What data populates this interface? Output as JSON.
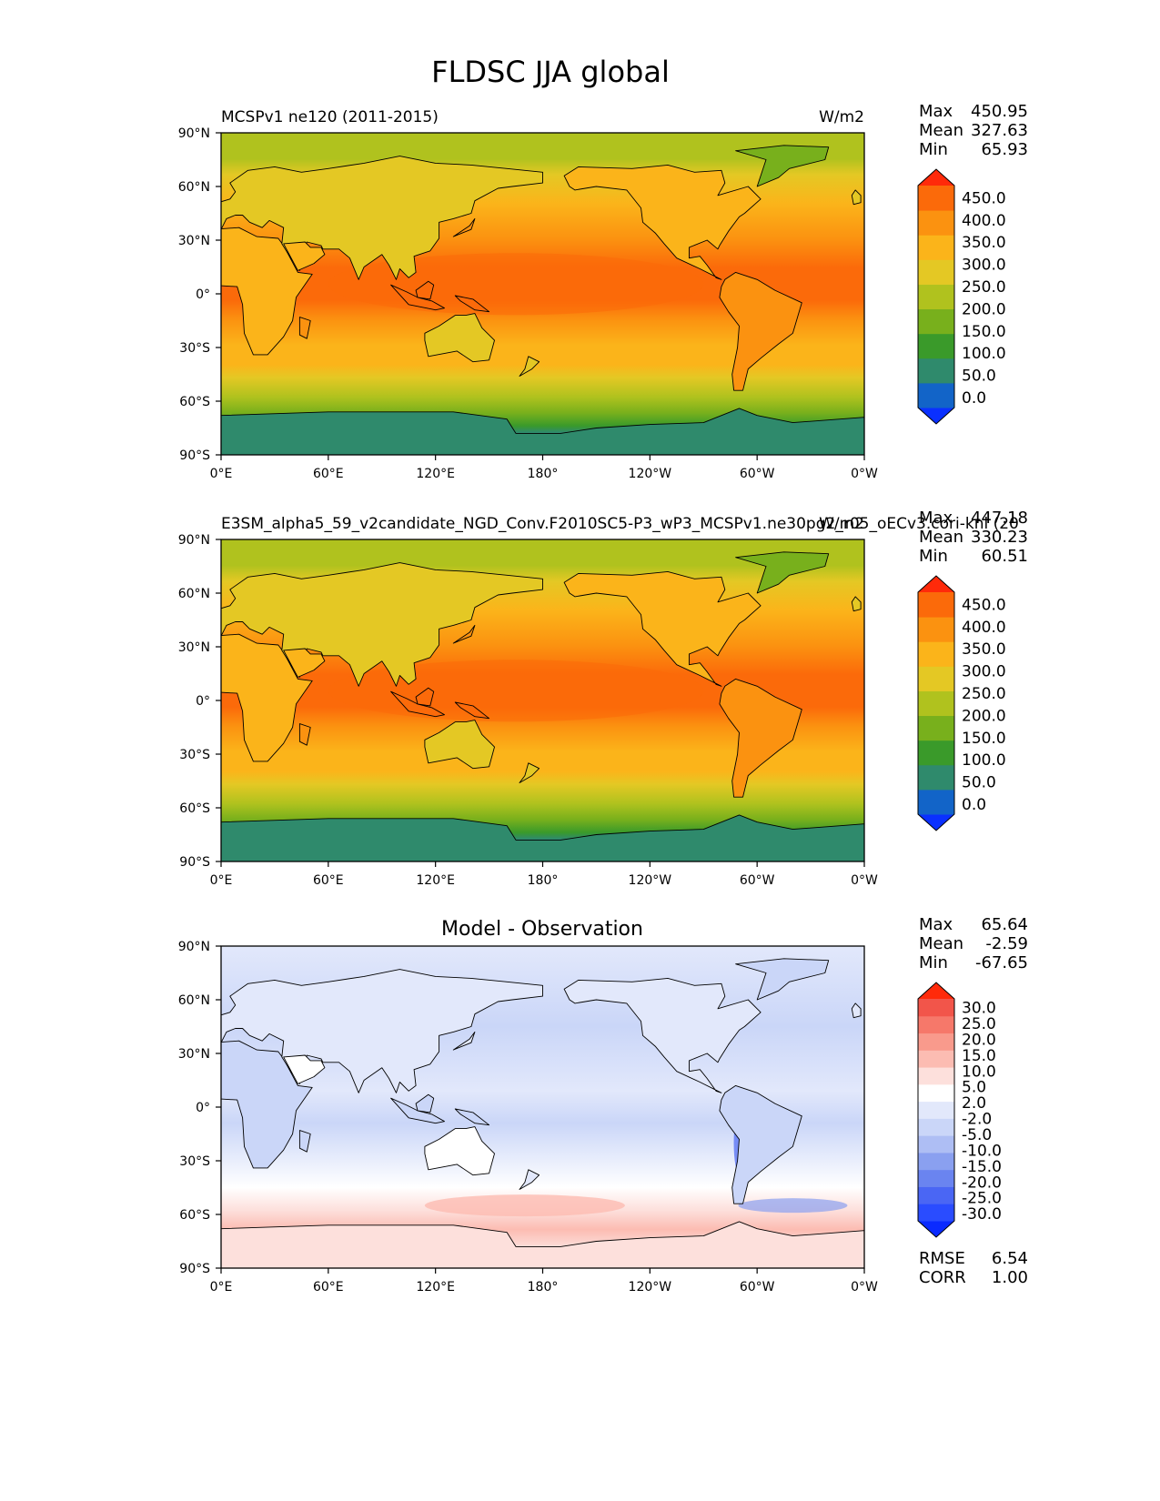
{
  "figure": {
    "title": "FLDSC JJA global",
    "lat_labels": [
      "90°N",
      "60°N",
      "30°N",
      "0°",
      "30°S",
      "60°S",
      "90°S"
    ],
    "lon_labels": [
      "0°E",
      "60°E",
      "120°E",
      "180°",
      "120°W",
      "60°W",
      "0°W"
    ]
  },
  "panels": [
    {
      "left_title": "MCSPv1 ne120 (2011-2015)",
      "right_title": "W/m2",
      "stats_labels": [
        "Max",
        "Mean",
        "Min"
      ],
      "stats_values": [
        "450.95",
        "327.63",
        "65.93"
      ],
      "colorbar_labels": [
        "450.0",
        "400.0",
        "350.0",
        "300.0",
        "250.0",
        "200.0",
        "150.0",
        "100.0",
        "50.0",
        "0.0"
      ],
      "colorbar_colors": [
        "#0a30ff",
        "#1264c8",
        "#2f8a6c",
        "#3a9a2a",
        "#78b01c",
        "#b0c21e",
        "#e4c824",
        "#fbb41a",
        "#fb9210",
        "#fb6a0a",
        "#ff2a0a"
      ]
    },
    {
      "left_title": "E3SM_alpha5_59_v2candidate_NGD_Conv.F2010SC5-P3_wP3_MCSPv1.ne30pg2_r05_oECv3.cori-knl (20",
      "right_title": "W/m2",
      "stats_labels": [
        "Max",
        "Mean",
        "Min"
      ],
      "stats_values": [
        "447.18",
        "330.23",
        "60.51"
      ],
      "colorbar_labels": [
        "450.0",
        "400.0",
        "350.0",
        "300.0",
        "250.0",
        "200.0",
        "150.0",
        "100.0",
        "50.0",
        "0.0"
      ],
      "colorbar_colors": [
        "#0a30ff",
        "#1264c8",
        "#2f8a6c",
        "#3a9a2a",
        "#78b01c",
        "#b0c21e",
        "#e4c824",
        "#fbb41a",
        "#fb9210",
        "#fb6a0a",
        "#ff2a0a"
      ]
    },
    {
      "center_title": "Model - Observation",
      "stats_labels": [
        "Max",
        "Mean",
        "Min"
      ],
      "stats_values": [
        "65.64",
        "-2.59",
        "-67.65"
      ],
      "colorbar_labels": [
        "30.0",
        "25.0",
        "20.0",
        "15.0",
        "10.0",
        "5.0",
        "2.0",
        "-2.0",
        "-5.0",
        "-10.0",
        "-15.0",
        "-20.0",
        "-25.0",
        "-30.0"
      ],
      "colorbar_colors": [
        "#0a2aff",
        "#2a4cff",
        "#4a66f4",
        "#6a84f0",
        "#8aa0f0",
        "#aebef4",
        "#cad6f8",
        "#e2e8fb",
        "#ffffff",
        "#fde0dc",
        "#fcbcb2",
        "#f99a8c",
        "#f6786a",
        "#f2554a",
        "#ff2a0a"
      ],
      "metrics_labels": [
        "RMSE",
        "CORR"
      ],
      "metrics_values": [
        "6.54",
        "1.00"
      ]
    }
  ]
}
